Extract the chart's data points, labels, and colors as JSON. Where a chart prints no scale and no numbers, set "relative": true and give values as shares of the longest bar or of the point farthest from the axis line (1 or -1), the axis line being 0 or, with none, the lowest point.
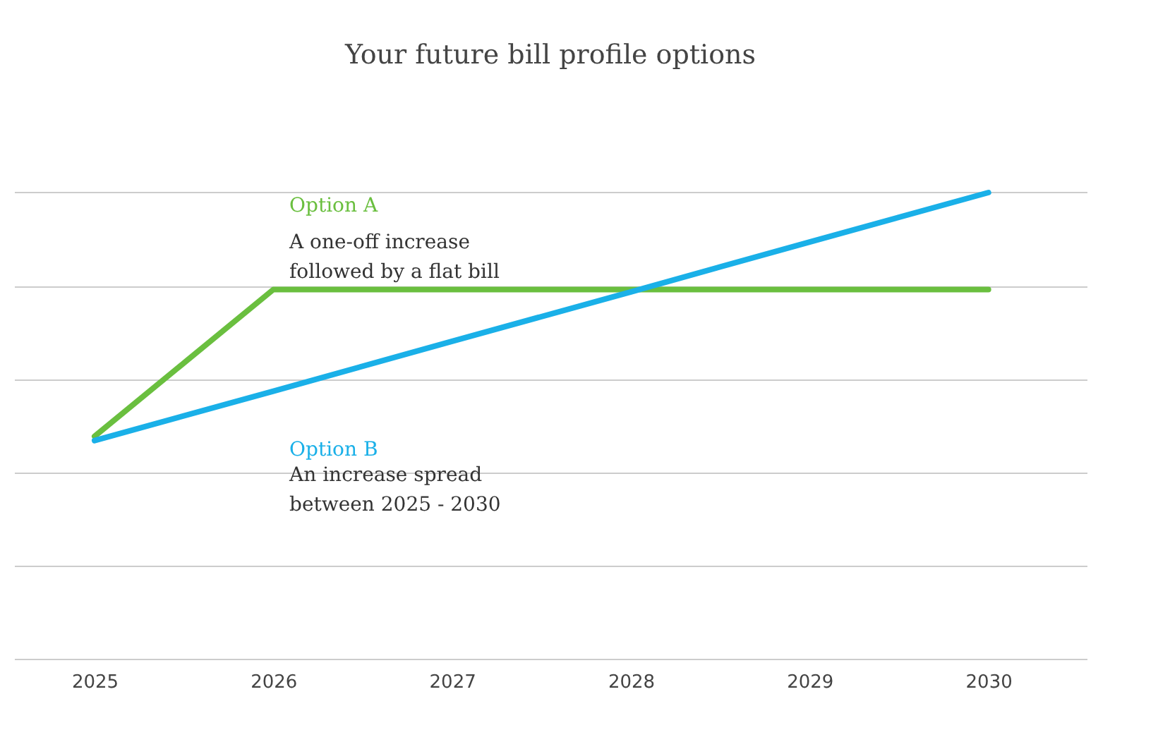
{
  "chart_data": {
    "type": "line",
    "title": "Your future bill profile options",
    "relative": true,
    "grid": "y",
    "tick_labels": "x",
    "categories": [
      "2025",
      "2026",
      "2027",
      "2028",
      "2029",
      "2030"
    ],
    "series": [
      {
        "name": "Option A",
        "color": "#6abf3f",
        "values": [
          0.477,
          0.792,
          0.792,
          0.792,
          0.792,
          0.792
        ]
      },
      {
        "name": "Option B",
        "color": "#1ab0e8",
        "values": [
          0.468,
          0.574,
          0.681,
          0.787,
          0.894,
          1
        ]
      }
    ],
    "annotations": [
      "A one-off increase\nfollowed by a flat bill",
      "An increase spread\nbetween 2025 - 2030"
    ]
  }
}
